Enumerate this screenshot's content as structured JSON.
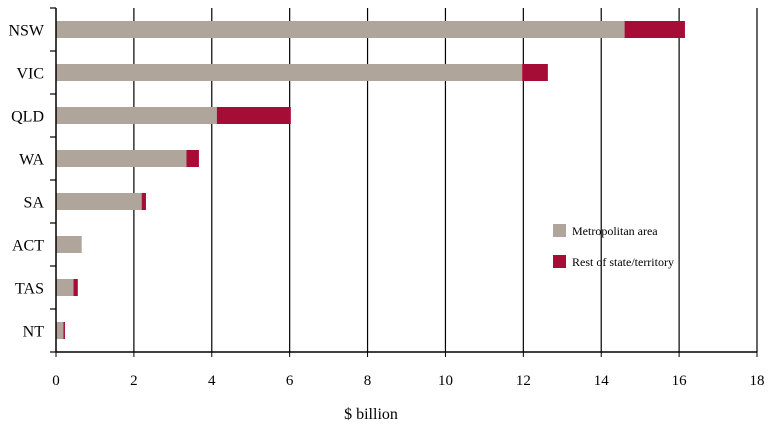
{
  "chart_data": {
    "type": "bar",
    "orientation": "horizontal",
    "stacked": true,
    "categories": [
      "NSW",
      "VIC",
      "QLD",
      "WA",
      "SA",
      "ACT",
      "TAS",
      "NT"
    ],
    "series": [
      {
        "name": "Metropolitan area",
        "color": "#b0a59b",
        "values": [
          14.6,
          11.97,
          4.13,
          3.35,
          2.2,
          0.66,
          0.45,
          0.19
        ]
      },
      {
        "name": "Rest of state/territory",
        "color": "#a50d37",
        "values": [
          1.55,
          0.66,
          1.9,
          0.32,
          0.11,
          0.0,
          0.11,
          0.04
        ]
      }
    ],
    "title": "",
    "xlabel": "$ billion",
    "ylabel": "",
    "xlim": [
      0,
      18
    ],
    "xticks": [
      0,
      2,
      4,
      6,
      8,
      10,
      12,
      14,
      16,
      18
    ],
    "grid": "vertical",
    "legend_position": "right"
  }
}
